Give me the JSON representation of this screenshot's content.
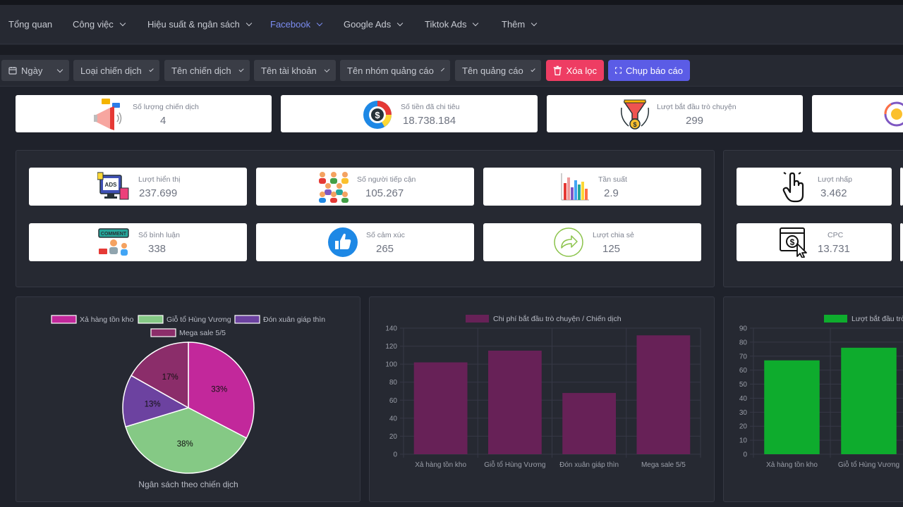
{
  "nav": {
    "items": [
      {
        "label": "Tổng quan",
        "dropdown": false,
        "active": false
      },
      {
        "label": "Công việc",
        "dropdown": true,
        "active": false
      },
      {
        "label": "Hiệu suất & ngân sách",
        "dropdown": true,
        "active": false
      },
      {
        "label": "Facebook",
        "dropdown": true,
        "active": true
      },
      {
        "label": "Google Ads",
        "dropdown": true,
        "active": false
      },
      {
        "label": "Tiktok Ads",
        "dropdown": true,
        "active": false
      },
      {
        "label": "Thêm",
        "dropdown": true,
        "active": false
      }
    ]
  },
  "filters": {
    "items": [
      {
        "label": "Ngày",
        "icon": "calendar-icon"
      },
      {
        "label": "Loại chiến dịch"
      },
      {
        "label": "Tên chiến dịch"
      },
      {
        "label": "Tên tài khoản"
      },
      {
        "label": "Tên nhóm quảng cáo"
      },
      {
        "label": "Tên quảng cáo"
      }
    ],
    "clear_label": "Xóa lọc",
    "capture_label": "Chụp báo cáo"
  },
  "summary": [
    {
      "label": "Số lượng chiến dịch",
      "value": "4",
      "icon": "megaphone-icon"
    },
    {
      "label": "Số tiền đã chi tiêu",
      "value": "18.738.184",
      "icon": "money-pie-icon"
    },
    {
      "label": "Lượt bắt đầu trò chuyện",
      "value": "299",
      "icon": "funnel-coin-icon"
    }
  ],
  "metrics": [
    {
      "label": "Lượt hiển thị",
      "value": "237.699",
      "icon": "ads-monitor-icon"
    },
    {
      "label": "Số người tiếp cận",
      "value": "105.267",
      "icon": "people-group-icon"
    },
    {
      "label": "Tần suất",
      "value": "2.9",
      "icon": "bar-chart-icon"
    },
    {
      "label": "Lượt nhấp",
      "value": "3.462",
      "icon": "click-hand-icon"
    },
    {
      "label": "Số bình luận",
      "value": "338",
      "icon": "comment-icon"
    },
    {
      "label": "Số cảm xúc",
      "value": "265",
      "icon": "thumbs-up-icon"
    },
    {
      "label": "Lượt chia sẻ",
      "value": "125",
      "icon": "share-arrow-icon"
    },
    {
      "label": "CPC",
      "value": "13.731",
      "icon": "cpc-cursor-icon"
    }
  ],
  "colors": {
    "pie": [
      "#c2289b",
      "#85c985",
      "#6c42a0",
      "#8b2d6a"
    ],
    "bar_purple": "#672157",
    "bar_green": "#0eac2d"
  },
  "chart_data": [
    {
      "type": "pie",
      "title": "Ngân sách theo chiến dịch",
      "legend_position": "top",
      "labels": [
        "Xả hàng tồn kho",
        "Giỗ tổ Hùng Vương",
        "Đón xuân giáp thìn",
        "Mega sale 5/5"
      ],
      "values": [
        33,
        38,
        13,
        17
      ],
      "value_labels": [
        "33%",
        "38%",
        "13%",
        "17%"
      ]
    },
    {
      "type": "bar",
      "series_name": "Chi phí bắt đầu trò chuyện / Chiến dịch",
      "categories": [
        "Xả hàng tồn kho",
        "Giỗ tổ Hùng Vương",
        "Đón xuân giáp thìn",
        "Mega sale 5/5"
      ],
      "values": [
        102,
        115,
        68,
        132
      ],
      "ylim": [
        0,
        140
      ],
      "yticks": [
        "0",
        "20",
        "40",
        "60",
        "80",
        "100",
        "120",
        "140"
      ],
      "grid": true
    },
    {
      "type": "bar",
      "series_name": "Lượt bắt đầu trò chuyện",
      "categories": [
        "Xả hàng tồn kho",
        "Giỗ tổ Hùng Vương"
      ],
      "values": [
        67,
        76
      ],
      "ylim": [
        0,
        90
      ],
      "yticks": [
        "0",
        "10",
        "20",
        "30",
        "40",
        "50",
        "60",
        "70",
        "80",
        "90"
      ],
      "grid": true
    }
  ]
}
